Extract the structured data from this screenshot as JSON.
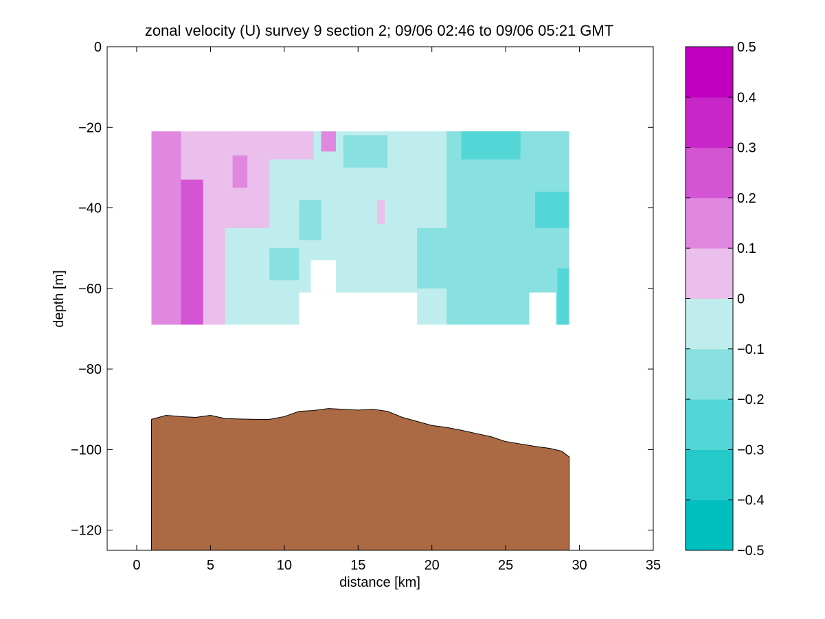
{
  "chart_data": {
    "type": "contour",
    "title": "zonal velocity (U) survey 9 section 2; 09/06 02:46 to 09/06 05:21 GMT",
    "xlabel": "distance [km]",
    "ylabel": "depth [m]",
    "xlim": [
      -2,
      35
    ],
    "ylim": [
      -125,
      0
    ],
    "xticks": [
      "0",
      "5",
      "10",
      "15",
      "20",
      "25",
      "30",
      "35"
    ],
    "yticks": [
      "0",
      "−20",
      "−40",
      "−60",
      "−80",
      "−100",
      "−120"
    ],
    "colorbar": {
      "levels": [
        -0.5,
        -0.4,
        -0.3,
        -0.2,
        -0.1,
        0,
        0.1,
        0.2,
        0.3,
        0.4,
        0.5
      ],
      "tick_labels": [
        "0.5",
        "0.4",
        "0.3",
        "0.2",
        "0.1",
        "0",
        "−0.1",
        "−0.2",
        "−0.3",
        "−0.4",
        "−0.5"
      ],
      "colors": [
        "#00bfbf",
        "#26c9c9",
        "#55d6d6",
        "#88e0e0",
        "#bfeded",
        "#ebbfeb",
        "#e088e0",
        "#d455d4",
        "#c926c9",
        "#bf00bf"
      ]
    },
    "velocity_section": {
      "x_range": [
        1,
        29.3
      ],
      "depth_range": [
        -21,
        -69
      ],
      "bins": [
        {
          "x": [
            1,
            3
          ],
          "z": [
            -21,
            -69
          ],
          "bin": 6
        },
        {
          "x": [
            1,
            4.5
          ],
          "z": [
            -33,
            -69
          ],
          "bin": 7
        },
        {
          "x": [
            3,
            6
          ],
          "z": [
            -21,
            -69
          ],
          "bin": 5
        },
        {
          "x": [
            6,
            9
          ],
          "z": [
            -21,
            -45
          ],
          "bin": 5
        },
        {
          "x": [
            6.5,
            7.5
          ],
          "z": [
            -27,
            -35
          ],
          "bin": 6
        },
        {
          "x": [
            9,
            12
          ],
          "z": [
            -21,
            -28
          ],
          "bin": 5
        },
        {
          "x": [
            6,
            30
          ],
          "z": [
            -21,
            -69
          ],
          "bin": 4
        },
        {
          "x": [
            12.5,
            13.5
          ],
          "z": [
            -21,
            -26
          ],
          "bin": 6
        },
        {
          "x": [
            11,
            12.5
          ],
          "z": [
            -38,
            -48
          ],
          "bin": 3
        },
        {
          "x": [
            9,
            11
          ],
          "z": [
            -50,
            -58
          ],
          "bin": 3
        },
        {
          "x": [
            14,
            17
          ],
          "z": [
            -22,
            -30
          ],
          "bin": 3
        },
        {
          "x": [
            19,
            21
          ],
          "z": [
            -45,
            -60
          ],
          "bin": 3
        },
        {
          "x": [
            21,
            30
          ],
          "z": [
            -21,
            -69
          ],
          "bin": 3
        },
        {
          "x": [
            22,
            26
          ],
          "z": [
            -21,
            -28
          ],
          "bin": 2
        },
        {
          "x": [
            27,
            29.3
          ],
          "z": [
            -36,
            -45
          ],
          "bin": 2
        },
        {
          "x": [
            28.5,
            29.3
          ],
          "z": [
            -55,
            -69
          ],
          "bin": 2
        },
        {
          "x": [
            16.3,
            16.8
          ],
          "z": [
            -38,
            -44
          ],
          "bin": 5
        }
      ],
      "gaps": [
        {
          "x": [
            11,
            19
          ],
          "z": [
            -61,
            -69
          ]
        },
        {
          "x": [
            11.8,
            13.5
          ],
          "z": [
            -53,
            -61
          ]
        },
        {
          "x": [
            26.6,
            28.4
          ],
          "z": [
            -61,
            -69
          ]
        }
      ]
    },
    "bathymetry": {
      "color": "#ab6a44",
      "x": [
        1,
        1.5,
        2,
        3,
        4,
        5,
        6,
        7,
        8,
        9,
        10,
        11,
        12,
        13,
        14,
        15,
        16,
        17,
        18,
        19,
        20,
        21,
        22,
        23,
        24,
        25,
        26,
        27,
        28,
        28.8,
        29.3
      ],
      "depth": [
        -92.5,
        -92,
        -91.5,
        -91.8,
        -92,
        -91.5,
        -92.3,
        -92.4,
        -92.5,
        -92.5,
        -91.8,
        -90.5,
        -90.3,
        -89.8,
        -90,
        -90.2,
        -90,
        -90.5,
        -92,
        -93,
        -94,
        -94.5,
        -95.2,
        -96,
        -96.8,
        -98,
        -98.6,
        -99.2,
        -99.7,
        -100.4,
        -101.8
      ]
    }
  }
}
